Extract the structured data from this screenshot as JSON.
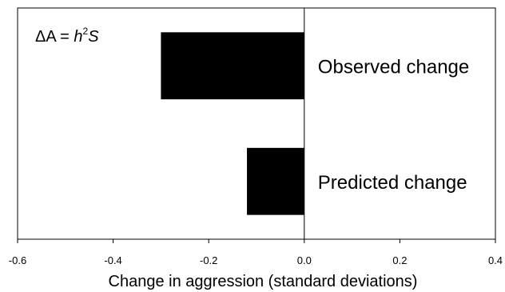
{
  "chart_data": {
    "type": "bar",
    "orientation": "horizontal",
    "categories": [
      "Observed change",
      "Predicted change"
    ],
    "values": [
      -0.3,
      -0.12
    ],
    "xlabel": "Change in aggression (standard deviations)",
    "ylabel": "",
    "xlim": [
      -0.6,
      0.4
    ],
    "xticks": [
      "-0.6",
      "-0.4",
      "-0.2",
      "0.0",
      "0.2",
      "0.4"
    ],
    "annotation": {
      "delta": "ΔA = ",
      "h": "h",
      "sup": "2",
      "s": "S"
    },
    "grid": false,
    "legend": "none",
    "bar_color": "#000000"
  }
}
